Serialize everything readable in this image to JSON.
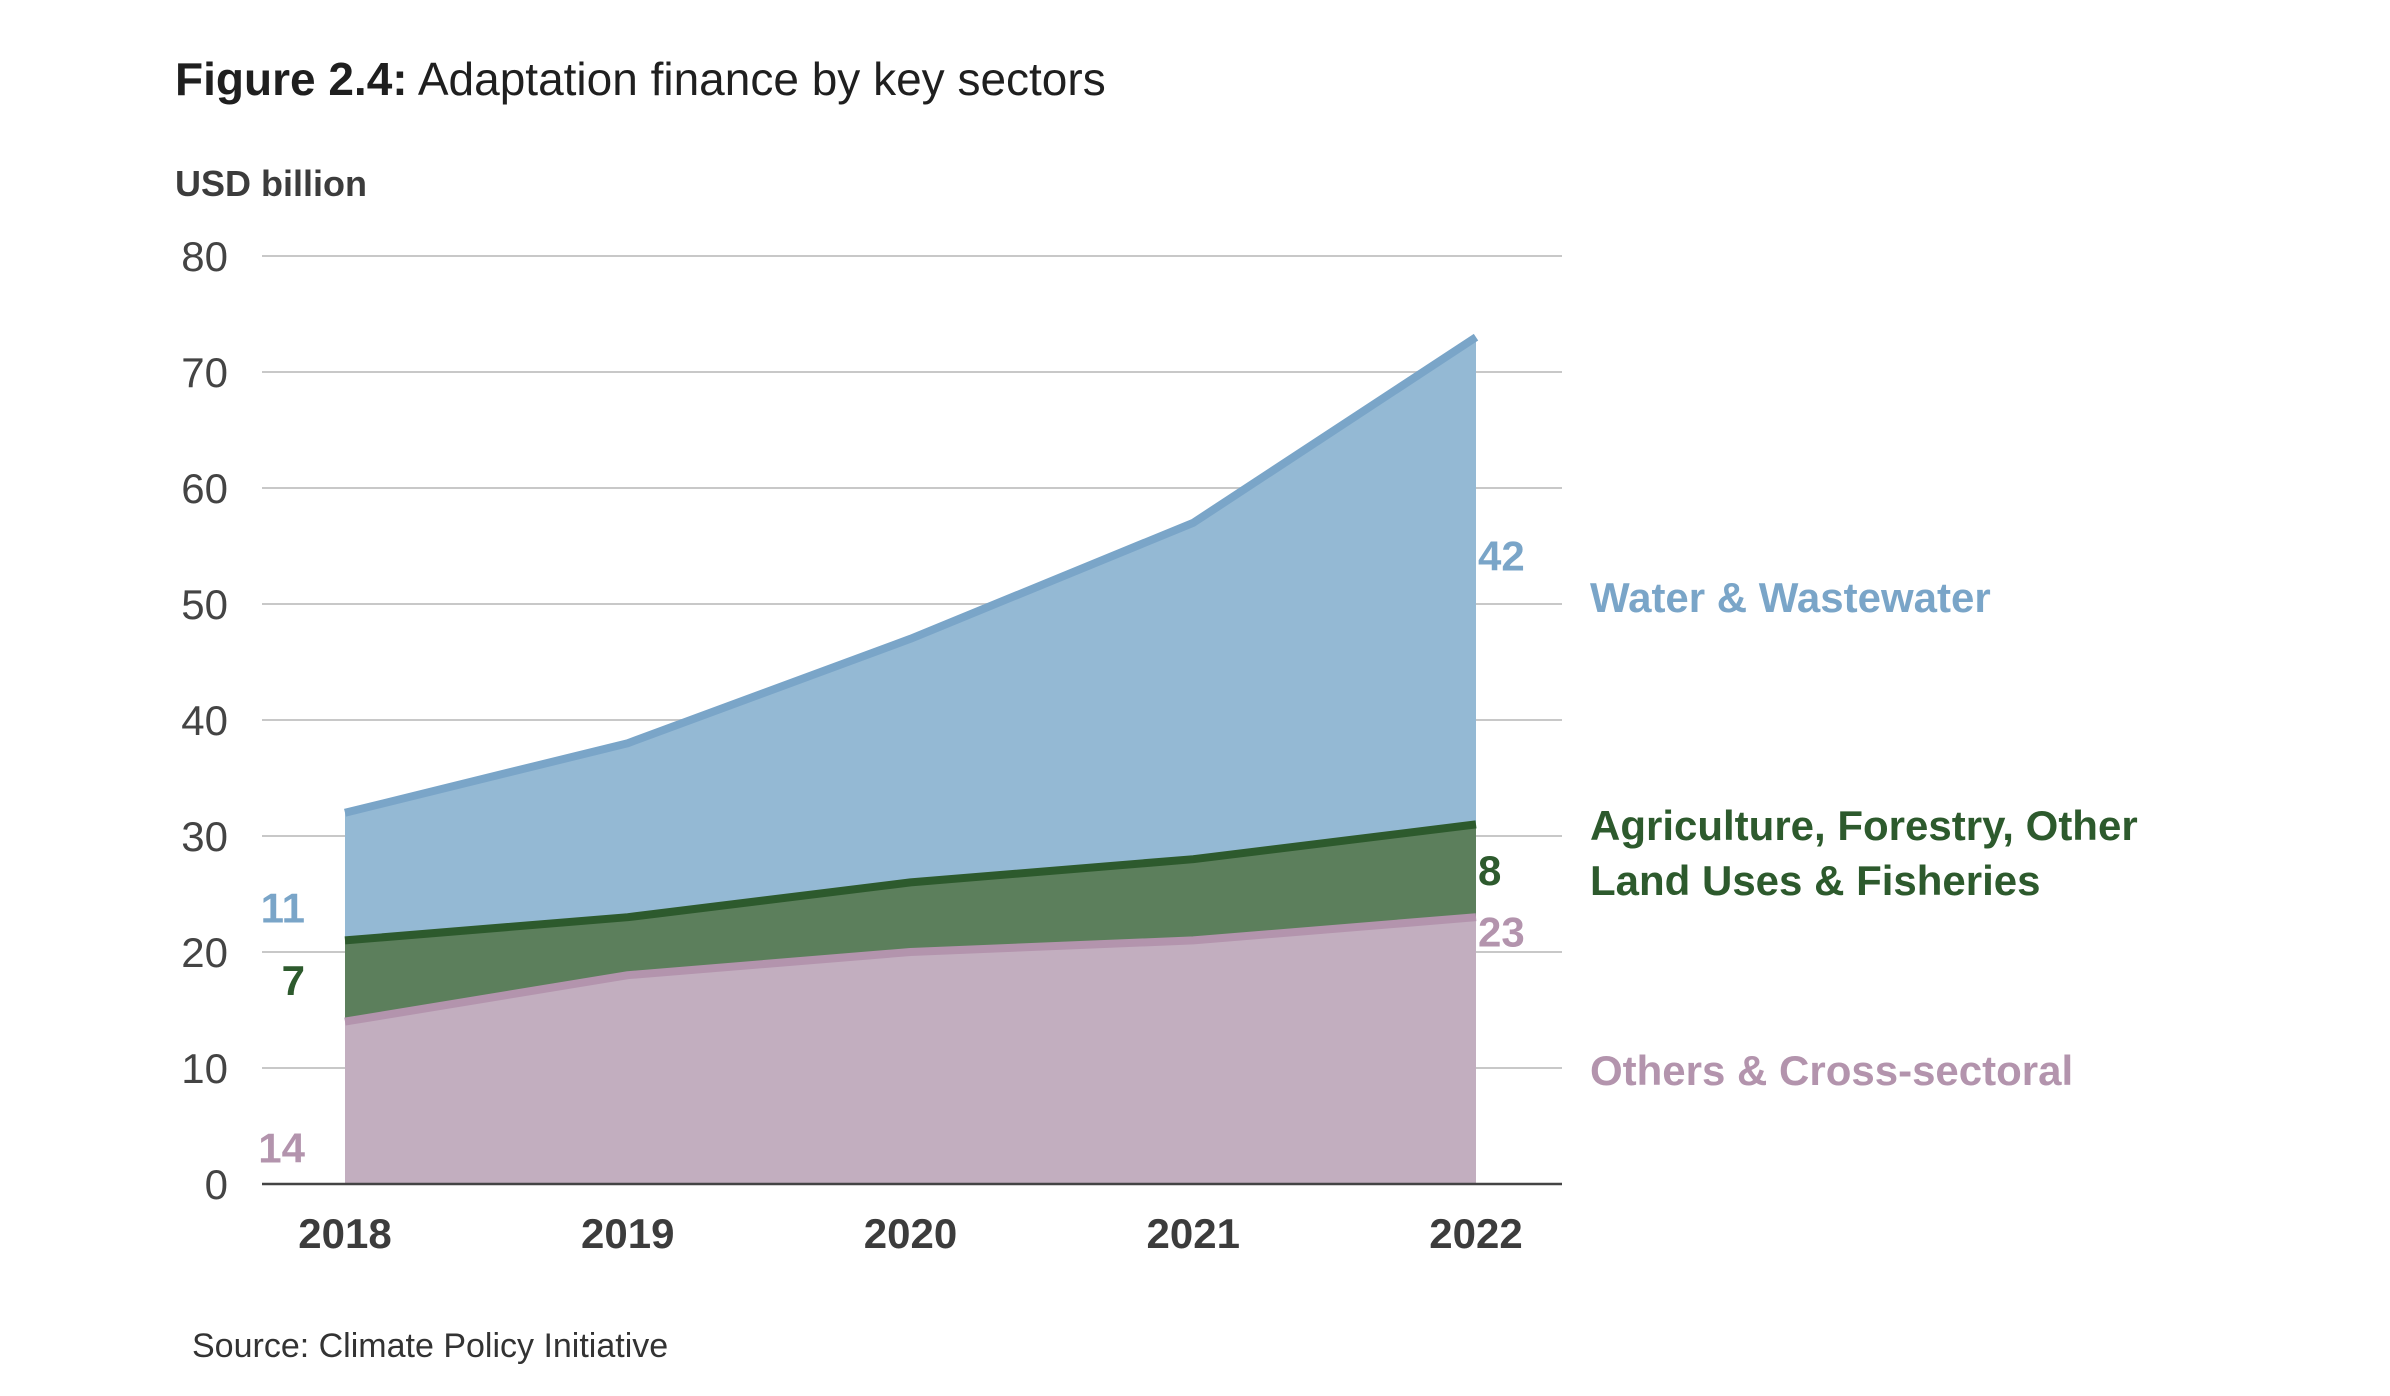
{
  "title": {
    "figure": "Figure 2.4:",
    "text": "Adaptation finance by key sectors"
  },
  "source": "Source: Climate Policy Initiative",
  "chart_data": {
    "type": "area",
    "stacked": true,
    "ylabel": "USD billion",
    "xlabel": "",
    "x": [
      "2018",
      "2019",
      "2020",
      "2021",
      "2022"
    ],
    "ylim": [
      0,
      80
    ],
    "yticks": [
      0,
      10,
      20,
      30,
      40,
      50,
      60,
      70,
      80
    ],
    "grid": true,
    "series": [
      {
        "name": "Others & Cross-sectoral",
        "values": [
          14,
          18,
          20,
          21,
          23
        ],
        "start_label": "14",
        "end_label": "23",
        "color": "#c2aebf",
        "line_color": "#b394ad",
        "label_color": "#b394ad"
      },
      {
        "name": "Agriculture, Forestry, Other Land Uses & Fisheries",
        "name_lines": [
          "Agriculture, Forestry, Other",
          "Land Uses & Fisheries"
        ],
        "values": [
          7,
          5,
          6,
          7,
          8
        ],
        "start_label": "7",
        "end_label": "8",
        "color": "#5c7f5c",
        "line_color": "#2d5a2d",
        "label_color": "#2d5a2d"
      },
      {
        "name": "Water & Wastewater",
        "values": [
          11,
          15,
          21,
          29,
          42
        ],
        "start_label": "11",
        "end_label": "42",
        "color": "#94b9d4",
        "line_color": "#7aa5c8",
        "label_color": "#7aa5c8"
      }
    ]
  }
}
